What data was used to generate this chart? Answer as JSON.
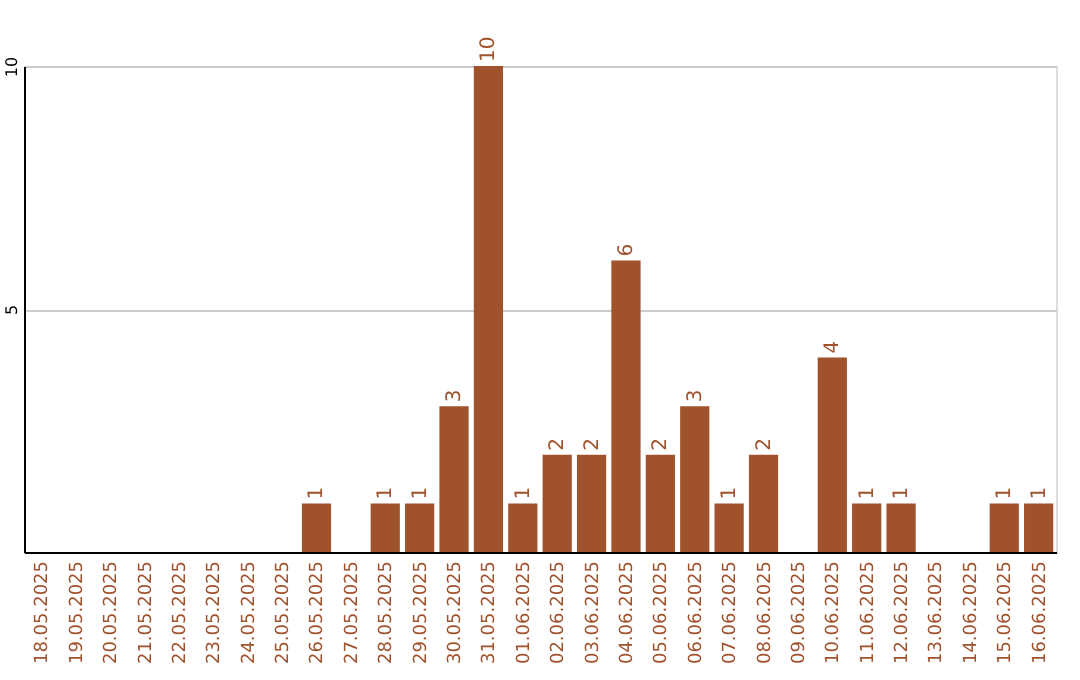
{
  "chart_data": {
    "type": "bar",
    "categories": [
      "18.05.2025",
      "19.05.2025",
      "20.05.2025",
      "21.05.2025",
      "22.05.2025",
      "23.05.2025",
      "24.05.2025",
      "25.05.2025",
      "26.05.2025",
      "27.05.2025",
      "28.05.2025",
      "29.05.2025",
      "30.05.2025",
      "31.05.2025",
      "01.06.2025",
      "02.06.2025",
      "03.06.2025",
      "04.06.2025",
      "05.06.2025",
      "06.06.2025",
      "07.06.2025",
      "08.06.2025",
      "09.06.2025",
      "10.06.2025",
      "11.06.2025",
      "12.06.2025",
      "13.06.2025",
      "14.06.2025",
      "15.06.2025",
      "16.06.2025"
    ],
    "values": [
      0,
      0,
      0,
      0,
      0,
      0,
      0,
      0,
      1,
      0,
      1,
      1,
      3,
      10,
      1,
      2,
      2,
      6,
      2,
      3,
      1,
      2,
      0,
      4,
      1,
      1,
      0,
      0,
      1,
      1
    ],
    "value_labels": [
      null,
      null,
      null,
      null,
      null,
      null,
      null,
      null,
      "1",
      null,
      "1",
      "1",
      "3",
      "10",
      "1",
      "2",
      "2",
      "6",
      "2",
      "3",
      "1",
      "2",
      null,
      "4",
      "1",
      "1",
      null,
      null,
      "1",
      "1"
    ],
    "color": "#a0522d",
    "ylim": [
      0,
      10
    ],
    "yticks": [
      5,
      10
    ],
    "grid": "y"
  }
}
